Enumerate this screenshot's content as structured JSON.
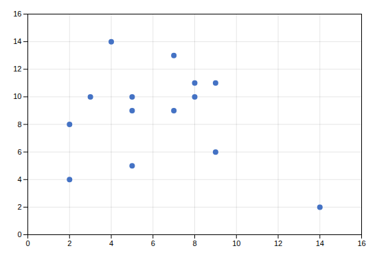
{
  "chart_data": {
    "type": "scatter",
    "x": [
      2,
      8,
      5,
      14,
      3,
      5,
      8,
      2,
      5,
      7,
      4,
      9,
      9,
      7
    ],
    "values": [
      8,
      11,
      9,
      2,
      10,
      5,
      10,
      4,
      10,
      13,
      14,
      6,
      11,
      9
    ],
    "color": "#4472C4",
    "xlim": [
      0,
      16
    ],
    "ylim": [
      0,
      16
    ],
    "xticks": [
      0,
      2,
      4,
      6,
      8,
      10,
      12,
      14,
      16
    ],
    "yticks": [
      0,
      2,
      4,
      6,
      8,
      10,
      12,
      14,
      16
    ],
    "grid": true
  }
}
